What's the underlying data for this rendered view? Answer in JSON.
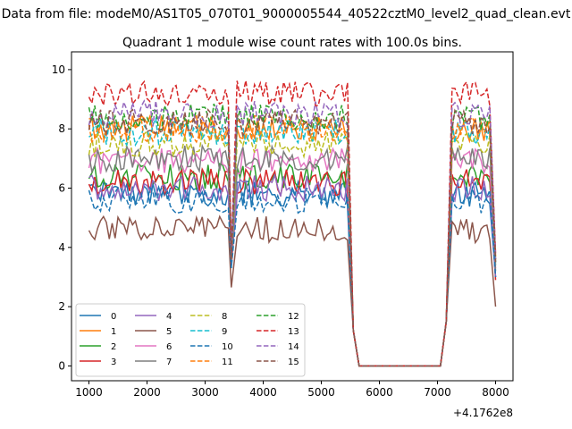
{
  "figure": {
    "suptitle": "Data from file: modeM0/AS1T05_070T01_9000005544_40522cztM0_level2_quad_clean.evt",
    "title": "Quadrant 1 module wise count rates with 100.0s bins.",
    "offset_label": "+4.1762e8"
  },
  "chart_data": {
    "type": "line",
    "title": "Quadrant 1 module wise count rates with 100.0s bins.",
    "xlabel": "",
    "ylabel": "",
    "x_offset": 417620000,
    "xlim": [
      700,
      8300
    ],
    "ylim": [
      -0.5,
      10.6
    ],
    "xticks": [
      1000,
      2000,
      3000,
      4000,
      5000,
      6000,
      7000,
      8000
    ],
    "xtick_labels": [
      "1000",
      "2000",
      "3000",
      "4000",
      "5000",
      "6000",
      "7000",
      "8000"
    ],
    "yticks": [
      0,
      2,
      4,
      6,
      8,
      10
    ],
    "ytick_labels": [
      "0",
      "2",
      "4",
      "6",
      "8",
      "10"
    ],
    "grid": false,
    "legend_position": "lower-left",
    "legend_columns": 4,
    "segments": [
      {
        "x_start": 1000,
        "x_end": 3400,
        "level": "high"
      },
      {
        "x": 3450,
        "level": "dip"
      },
      {
        "x_start": 3550,
        "x_end": 5450,
        "level": "high"
      },
      {
        "x": 5550,
        "value": 1.2
      },
      {
        "x_start": 5650,
        "x_end": 7050,
        "value": 0
      },
      {
        "x": 7150,
        "value": 1.5
      },
      {
        "x_start": 7250,
        "x_end": 7900,
        "level": "high"
      },
      {
        "x": 8000,
        "level": "end"
      }
    ],
    "series": [
      {
        "name": "0",
        "color": "#1f77b4",
        "dash": "solid",
        "mean": 5.8,
        "dip": 3.3,
        "end": 3.0
      },
      {
        "name": "1",
        "color": "#ff7f0e",
        "dash": "solid",
        "mean": 8.0,
        "dip": 3.6,
        "end": 3.6
      },
      {
        "name": "2",
        "color": "#2ca02c",
        "dash": "solid",
        "mean": 6.4,
        "dip": 3.5,
        "end": 3.4
      },
      {
        "name": "3",
        "color": "#d62728",
        "dash": "solid",
        "mean": 6.2,
        "dip": 3.4,
        "end": 2.9
      },
      {
        "name": "4",
        "color": "#9467bd",
        "dash": "solid",
        "mean": 6.0,
        "dip": 3.4,
        "end": 3.0
      },
      {
        "name": "5",
        "color": "#8c564b",
        "dash": "solid",
        "mean": 4.6,
        "dip": 2.65,
        "end": 2.0
      },
      {
        "name": "6",
        "color": "#e377c2",
        "dash": "solid",
        "mean": 6.9,
        "dip": 3.5,
        "end": 3.3
      },
      {
        "name": "7",
        "color": "#7f7f7f",
        "dash": "solid",
        "mean": 7.0,
        "dip": 3.5,
        "end": 3.2
      },
      {
        "name": "8",
        "color": "#bcbd22",
        "dash": "dashed",
        "mean": 7.5,
        "dip": 3.6,
        "end": 3.5
      },
      {
        "name": "9",
        "color": "#17becf",
        "dash": "dashed",
        "mean": 7.9,
        "dip": 3.6,
        "end": 3.5
      },
      {
        "name": "10",
        "color": "#1f77b4",
        "dash": "dashed",
        "mean": 5.6,
        "dip": 3.3,
        "end": 3.0
      },
      {
        "name": "11",
        "color": "#ff7f0e",
        "dash": "dashed",
        "mean": 8.0,
        "dip": 3.6,
        "end": 3.7
      },
      {
        "name": "12",
        "color": "#2ca02c",
        "dash": "dashed",
        "mean": 8.4,
        "dip": 3.7,
        "end": 3.6
      },
      {
        "name": "13",
        "color": "#d62728",
        "dash": "dashed",
        "mean": 9.2,
        "dip": 3.8,
        "end": 3.8
      },
      {
        "name": "14",
        "color": "#9467bd",
        "dash": "dashed",
        "mean": 8.5,
        "dip": 3.7,
        "end": 3.6
      },
      {
        "name": "15",
        "color": "#8c564b",
        "dash": "dashed",
        "mean": 8.2,
        "dip": 3.6,
        "end": 3.5
      }
    ]
  }
}
